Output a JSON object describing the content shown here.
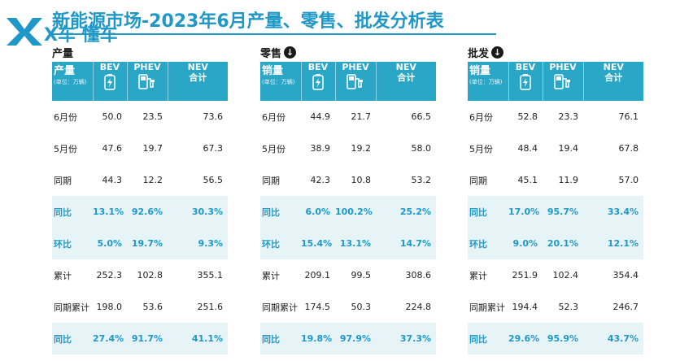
{
  "brand": {
    "logo_text": "X车 懂车"
  },
  "title": "新能源市场-2023年6月产量、零售、批发分析表",
  "columns": {
    "bev": "BEV",
    "phev": "PHEV",
    "nev_top": "NEV",
    "nev_bottom": "合计"
  },
  "unit_label": "(单位：万辆)",
  "sections": [
    {
      "label": "产量",
      "head_label": "产量",
      "rows": [
        {
          "label": "6月份",
          "bev": "50.0",
          "phev": "23.5",
          "nev": "73.6",
          "hl": false
        },
        {
          "label": "5月份",
          "bev": "47.6",
          "phev": "19.7",
          "nev": "67.3",
          "hl": false
        },
        {
          "label": "同期",
          "bev": "44.3",
          "phev": "12.2",
          "nev": "56.5",
          "hl": false
        },
        {
          "label": "同比",
          "bev": "13.1%",
          "phev": "92.6%",
          "nev": "30.3%",
          "hl": true
        },
        {
          "label": "环比",
          "bev": "5.0%",
          "phev": "19.7%",
          "nev": "9.3%",
          "hl": true
        },
        {
          "label": "累计",
          "bev": "252.3",
          "phev": "102.8",
          "nev": "355.1",
          "hl": false
        },
        {
          "label": "同期累计",
          "bev": "198.0",
          "phev": "53.6",
          "nev": "251.6",
          "hl": false
        },
        {
          "label": "同比",
          "bev": "27.4%",
          "phev": "91.7%",
          "nev": "41.1%",
          "hl": true
        }
      ]
    },
    {
      "label": "零售",
      "head_label": "销量",
      "rows": [
        {
          "label": "6月份",
          "bev": "44.9",
          "phev": "21.7",
          "nev": "66.5",
          "hl": false
        },
        {
          "label": "5月份",
          "bev": "38.9",
          "phev": "19.2",
          "nev": "58.0",
          "hl": false
        },
        {
          "label": "同期",
          "bev": "42.3",
          "phev": "10.8",
          "nev": "53.2",
          "hl": false
        },
        {
          "label": "同比",
          "bev": "6.0%",
          "phev": "100.2%",
          "nev": "25.2%",
          "hl": true
        },
        {
          "label": "环比",
          "bev": "15.4%",
          "phev": "13.1%",
          "nev": "14.7%",
          "hl": true
        },
        {
          "label": "累计",
          "bev": "209.1",
          "phev": "99.5",
          "nev": "308.6",
          "hl": false
        },
        {
          "label": "同期累计",
          "bev": "174.5",
          "phev": "50.3",
          "nev": "224.8",
          "hl": false
        },
        {
          "label": "同比",
          "bev": "19.8%",
          "phev": "97.9%",
          "nev": "37.3%",
          "hl": true
        }
      ]
    },
    {
      "label": "批发",
      "head_label": "销量",
      "rows": [
        {
          "label": "6月份",
          "bev": "52.8",
          "phev": "23.3",
          "nev": "76.1",
          "hl": false
        },
        {
          "label": "5月份",
          "bev": "48.4",
          "phev": "19.4",
          "nev": "67.8",
          "hl": false
        },
        {
          "label": "同期",
          "bev": "45.1",
          "phev": "11.9",
          "nev": "57.0",
          "hl": false
        },
        {
          "label": "同比",
          "bev": "17.0%",
          "phev": "95.7%",
          "nev": "33.4%",
          "hl": true
        },
        {
          "label": "环比",
          "bev": "9.0%",
          "phev": "20.1%",
          "nev": "12.1%",
          "hl": true
        },
        {
          "label": "累计",
          "bev": "251.9",
          "phev": "102.4",
          "nev": "354.4",
          "hl": false
        },
        {
          "label": "同期累计",
          "bev": "194.4",
          "phev": "52.3",
          "nev": "246.7",
          "hl": false
        },
        {
          "label": "同比",
          "bev": "29.6%",
          "phev": "95.9%",
          "nev": "43.7%",
          "hl": true
        }
      ]
    }
  ],
  "icons": [
    "battery-icon",
    "plug-in-hybrid-icon",
    "arrow-down-icon"
  ],
  "colors": {
    "accent": "#2aa6c7",
    "title": "#1f98c8",
    "highlight_row": "#e6f4f8"
  }
}
